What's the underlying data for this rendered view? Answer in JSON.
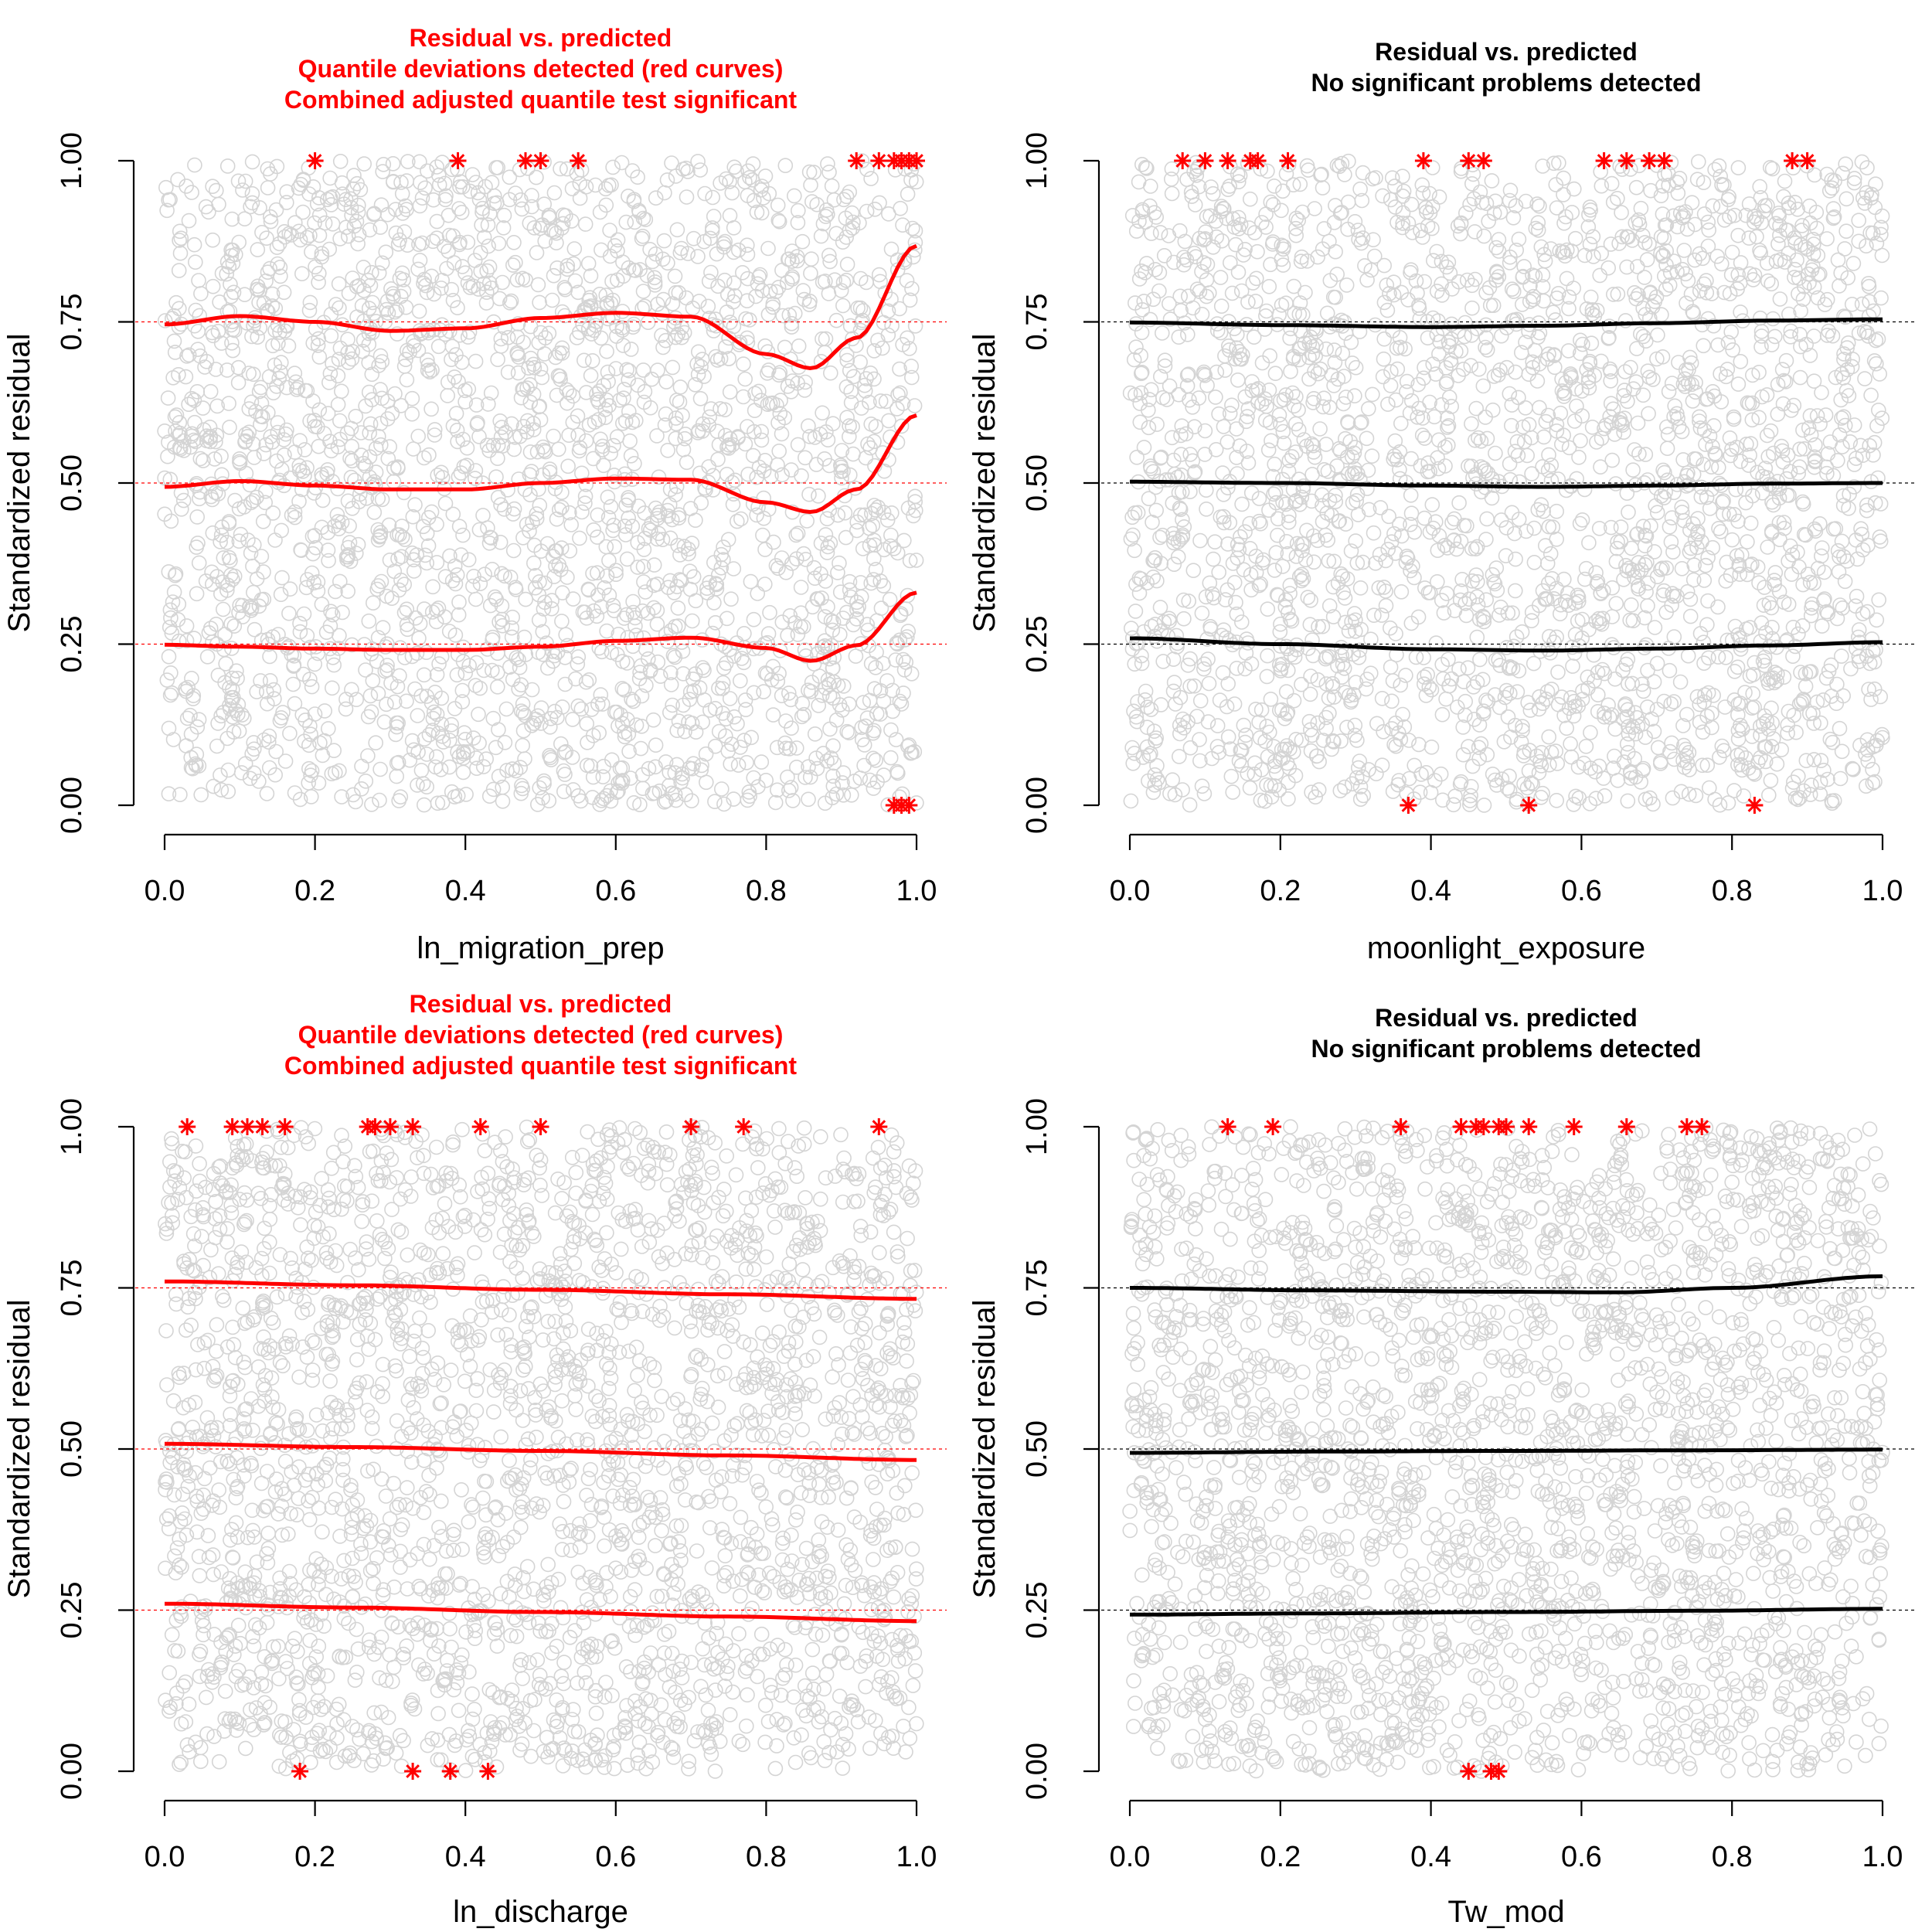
{
  "colors": {
    "scatter_point": "#000000",
    "significant": "#ff0000",
    "not_significant": "#000000",
    "reference_line_significant": "#ff0000",
    "reference_line_normal": "#000000"
  },
  "chart_data": [
    {
      "type": "scatter",
      "title_lines": [
        "Residual vs. predicted",
        "Quantile deviations detected (red curves)",
        "Combined adjusted quantile test significant"
      ],
      "title_color": "#ff0000",
      "xlabel": "ln_migration_prep",
      "ylabel": "Standardized residual",
      "xlim": [
        0,
        1
      ],
      "ylim": [
        0,
        1
      ],
      "xticks": [
        "0.0",
        "0.2",
        "0.4",
        "0.6",
        "0.8",
        "1.0"
      ],
      "yticks": [
        "0.00",
        "0.25",
        "0.50",
        "0.75",
        "1.00"
      ],
      "reference_lines": [
        0.25,
        0.5,
        0.75
      ],
      "curve_color": "#ff0000",
      "quantile_curves": [
        {
          "quantile": 0.25,
          "x": [
            0,
            0.1,
            0.2,
            0.3,
            0.4,
            0.5,
            0.6,
            0.7,
            0.8,
            0.86,
            0.92,
            1.0
          ],
          "y": [
            0.249,
            0.246,
            0.243,
            0.241,
            0.241,
            0.246,
            0.255,
            0.26,
            0.244,
            0.224,
            0.248,
            0.33
          ]
        },
        {
          "quantile": 0.5,
          "x": [
            0,
            0.1,
            0.2,
            0.3,
            0.4,
            0.5,
            0.6,
            0.7,
            0.8,
            0.86,
            0.92,
            1.0
          ],
          "y": [
            0.494,
            0.503,
            0.496,
            0.49,
            0.49,
            0.5,
            0.507,
            0.505,
            0.47,
            0.455,
            0.49,
            0.605
          ]
        },
        {
          "quantile": 0.75,
          "x": [
            0,
            0.1,
            0.2,
            0.3,
            0.4,
            0.5,
            0.6,
            0.7,
            0.8,
            0.86,
            0.92,
            1.0
          ],
          "y": [
            0.746,
            0.759,
            0.75,
            0.736,
            0.74,
            0.756,
            0.764,
            0.758,
            0.7,
            0.678,
            0.725,
            0.868
          ]
        }
      ],
      "outliers_top_x": [
        0.2,
        0.39,
        0.48,
        0.5,
        0.55,
        0.92,
        0.95,
        0.97,
        0.98,
        0.99,
        1.0
      ],
      "outliers_bottom_x": [
        0.97,
        0.98,
        0.99
      ]
    },
    {
      "type": "scatter",
      "title_lines": [
        "Residual vs. predicted",
        "No significant problems detected"
      ],
      "title_color": "#000000",
      "xlabel": "moonlight_exposure",
      "ylabel": "Standardized residual",
      "xlim": [
        0,
        1
      ],
      "ylim": [
        0,
        1
      ],
      "xticks": [
        "0.0",
        "0.2",
        "0.4",
        "0.6",
        "0.8",
        "1.0"
      ],
      "yticks": [
        "0.00",
        "0.25",
        "0.50",
        "0.75",
        "1.00"
      ],
      "reference_lines": [
        0.25,
        0.5,
        0.75
      ],
      "curve_color": "#000000",
      "quantile_curves": [
        {
          "quantile": 0.25,
          "x": [
            0,
            0.2,
            0.4,
            0.55,
            0.7,
            0.85,
            1.0
          ],
          "y": [
            0.259,
            0.25,
            0.242,
            0.24,
            0.243,
            0.248,
            0.253
          ]
        },
        {
          "quantile": 0.5,
          "x": [
            0,
            0.2,
            0.4,
            0.55,
            0.7,
            0.85,
            1.0
          ],
          "y": [
            0.502,
            0.5,
            0.496,
            0.494,
            0.496,
            0.499,
            0.5
          ]
        },
        {
          "quantile": 0.75,
          "x": [
            0,
            0.2,
            0.4,
            0.55,
            0.7,
            0.85,
            1.0
          ],
          "y": [
            0.749,
            0.745,
            0.742,
            0.744,
            0.748,
            0.752,
            0.754
          ]
        }
      ],
      "outliers_top_x": [
        0.07,
        0.1,
        0.13,
        0.16,
        0.17,
        0.21,
        0.39,
        0.45,
        0.47,
        0.63,
        0.66,
        0.69,
        0.71,
        0.88,
        0.9
      ],
      "outliers_bottom_x": [
        0.37,
        0.53,
        0.83
      ]
    },
    {
      "type": "scatter",
      "title_lines": [
        "Residual vs. predicted",
        "Quantile deviations detected (red curves)",
        "Combined adjusted quantile test significant"
      ],
      "title_color": "#ff0000",
      "xlabel": "ln_discharge",
      "ylabel": "Standardized residual",
      "xlim": [
        0,
        1
      ],
      "ylim": [
        0,
        1
      ],
      "xticks": [
        "0.0",
        "0.2",
        "0.4",
        "0.6",
        "0.8",
        "1.0"
      ],
      "yticks": [
        "0.00",
        "0.25",
        "0.50",
        "0.75",
        "1.00"
      ],
      "reference_lines": [
        0.25,
        0.5,
        0.75
      ],
      "curve_color": "#ff0000",
      "quantile_curves": [
        {
          "quantile": 0.25,
          "x": [
            0,
            0.25,
            0.5,
            0.75,
            1.0
          ],
          "y": [
            0.26,
            0.254,
            0.247,
            0.24,
            0.233
          ]
        },
        {
          "quantile": 0.5,
          "x": [
            0,
            0.25,
            0.5,
            0.75,
            1.0
          ],
          "y": [
            0.508,
            0.503,
            0.497,
            0.49,
            0.483
          ]
        },
        {
          "quantile": 0.75,
          "x": [
            0,
            0.25,
            0.5,
            0.75,
            1.0
          ],
          "y": [
            0.76,
            0.754,
            0.747,
            0.74,
            0.733
          ]
        }
      ],
      "outliers_top_x": [
        0.03,
        0.09,
        0.11,
        0.13,
        0.16,
        0.27,
        0.28,
        0.3,
        0.33,
        0.42,
        0.5,
        0.7,
        0.77,
        0.95
      ],
      "outliers_bottom_x": [
        0.18,
        0.33,
        0.38,
        0.43
      ]
    },
    {
      "type": "scatter",
      "title_lines": [
        "Residual vs. predicted",
        "No significant problems detected"
      ],
      "title_color": "#000000",
      "xlabel": "Tw_mod",
      "ylabel": "Standardized residual",
      "xlim": [
        0,
        1
      ],
      "ylim": [
        0,
        1
      ],
      "xticks": [
        "0.0",
        "0.2",
        "0.4",
        "0.6",
        "0.8",
        "1.0"
      ],
      "yticks": [
        "0.00",
        "0.25",
        "0.50",
        "0.75",
        "1.00"
      ],
      "reference_lines": [
        0.25,
        0.5,
        0.75
      ],
      "curve_color": "#000000",
      "quantile_curves": [
        {
          "quantile": 0.25,
          "x": [
            0,
            0.25,
            0.5,
            0.75,
            1.0
          ],
          "y": [
            0.243,
            0.245,
            0.247,
            0.249,
            0.252
          ]
        },
        {
          "quantile": 0.5,
          "x": [
            0,
            0.25,
            0.5,
            0.75,
            1.0
          ],
          "y": [
            0.494,
            0.496,
            0.497,
            0.498,
            0.499
          ]
        },
        {
          "quantile": 0.75,
          "x": [
            0,
            0.25,
            0.5,
            0.65,
            0.8,
            1.0
          ],
          "y": [
            0.75,
            0.746,
            0.744,
            0.743,
            0.75,
            0.768
          ]
        }
      ],
      "outliers_top_x": [
        0.13,
        0.19,
        0.36,
        0.44,
        0.46,
        0.47,
        0.49,
        0.5,
        0.53,
        0.59,
        0.66,
        0.74,
        0.76
      ],
      "outliers_bottom_x": [
        0.45,
        0.48,
        0.49
      ]
    }
  ]
}
